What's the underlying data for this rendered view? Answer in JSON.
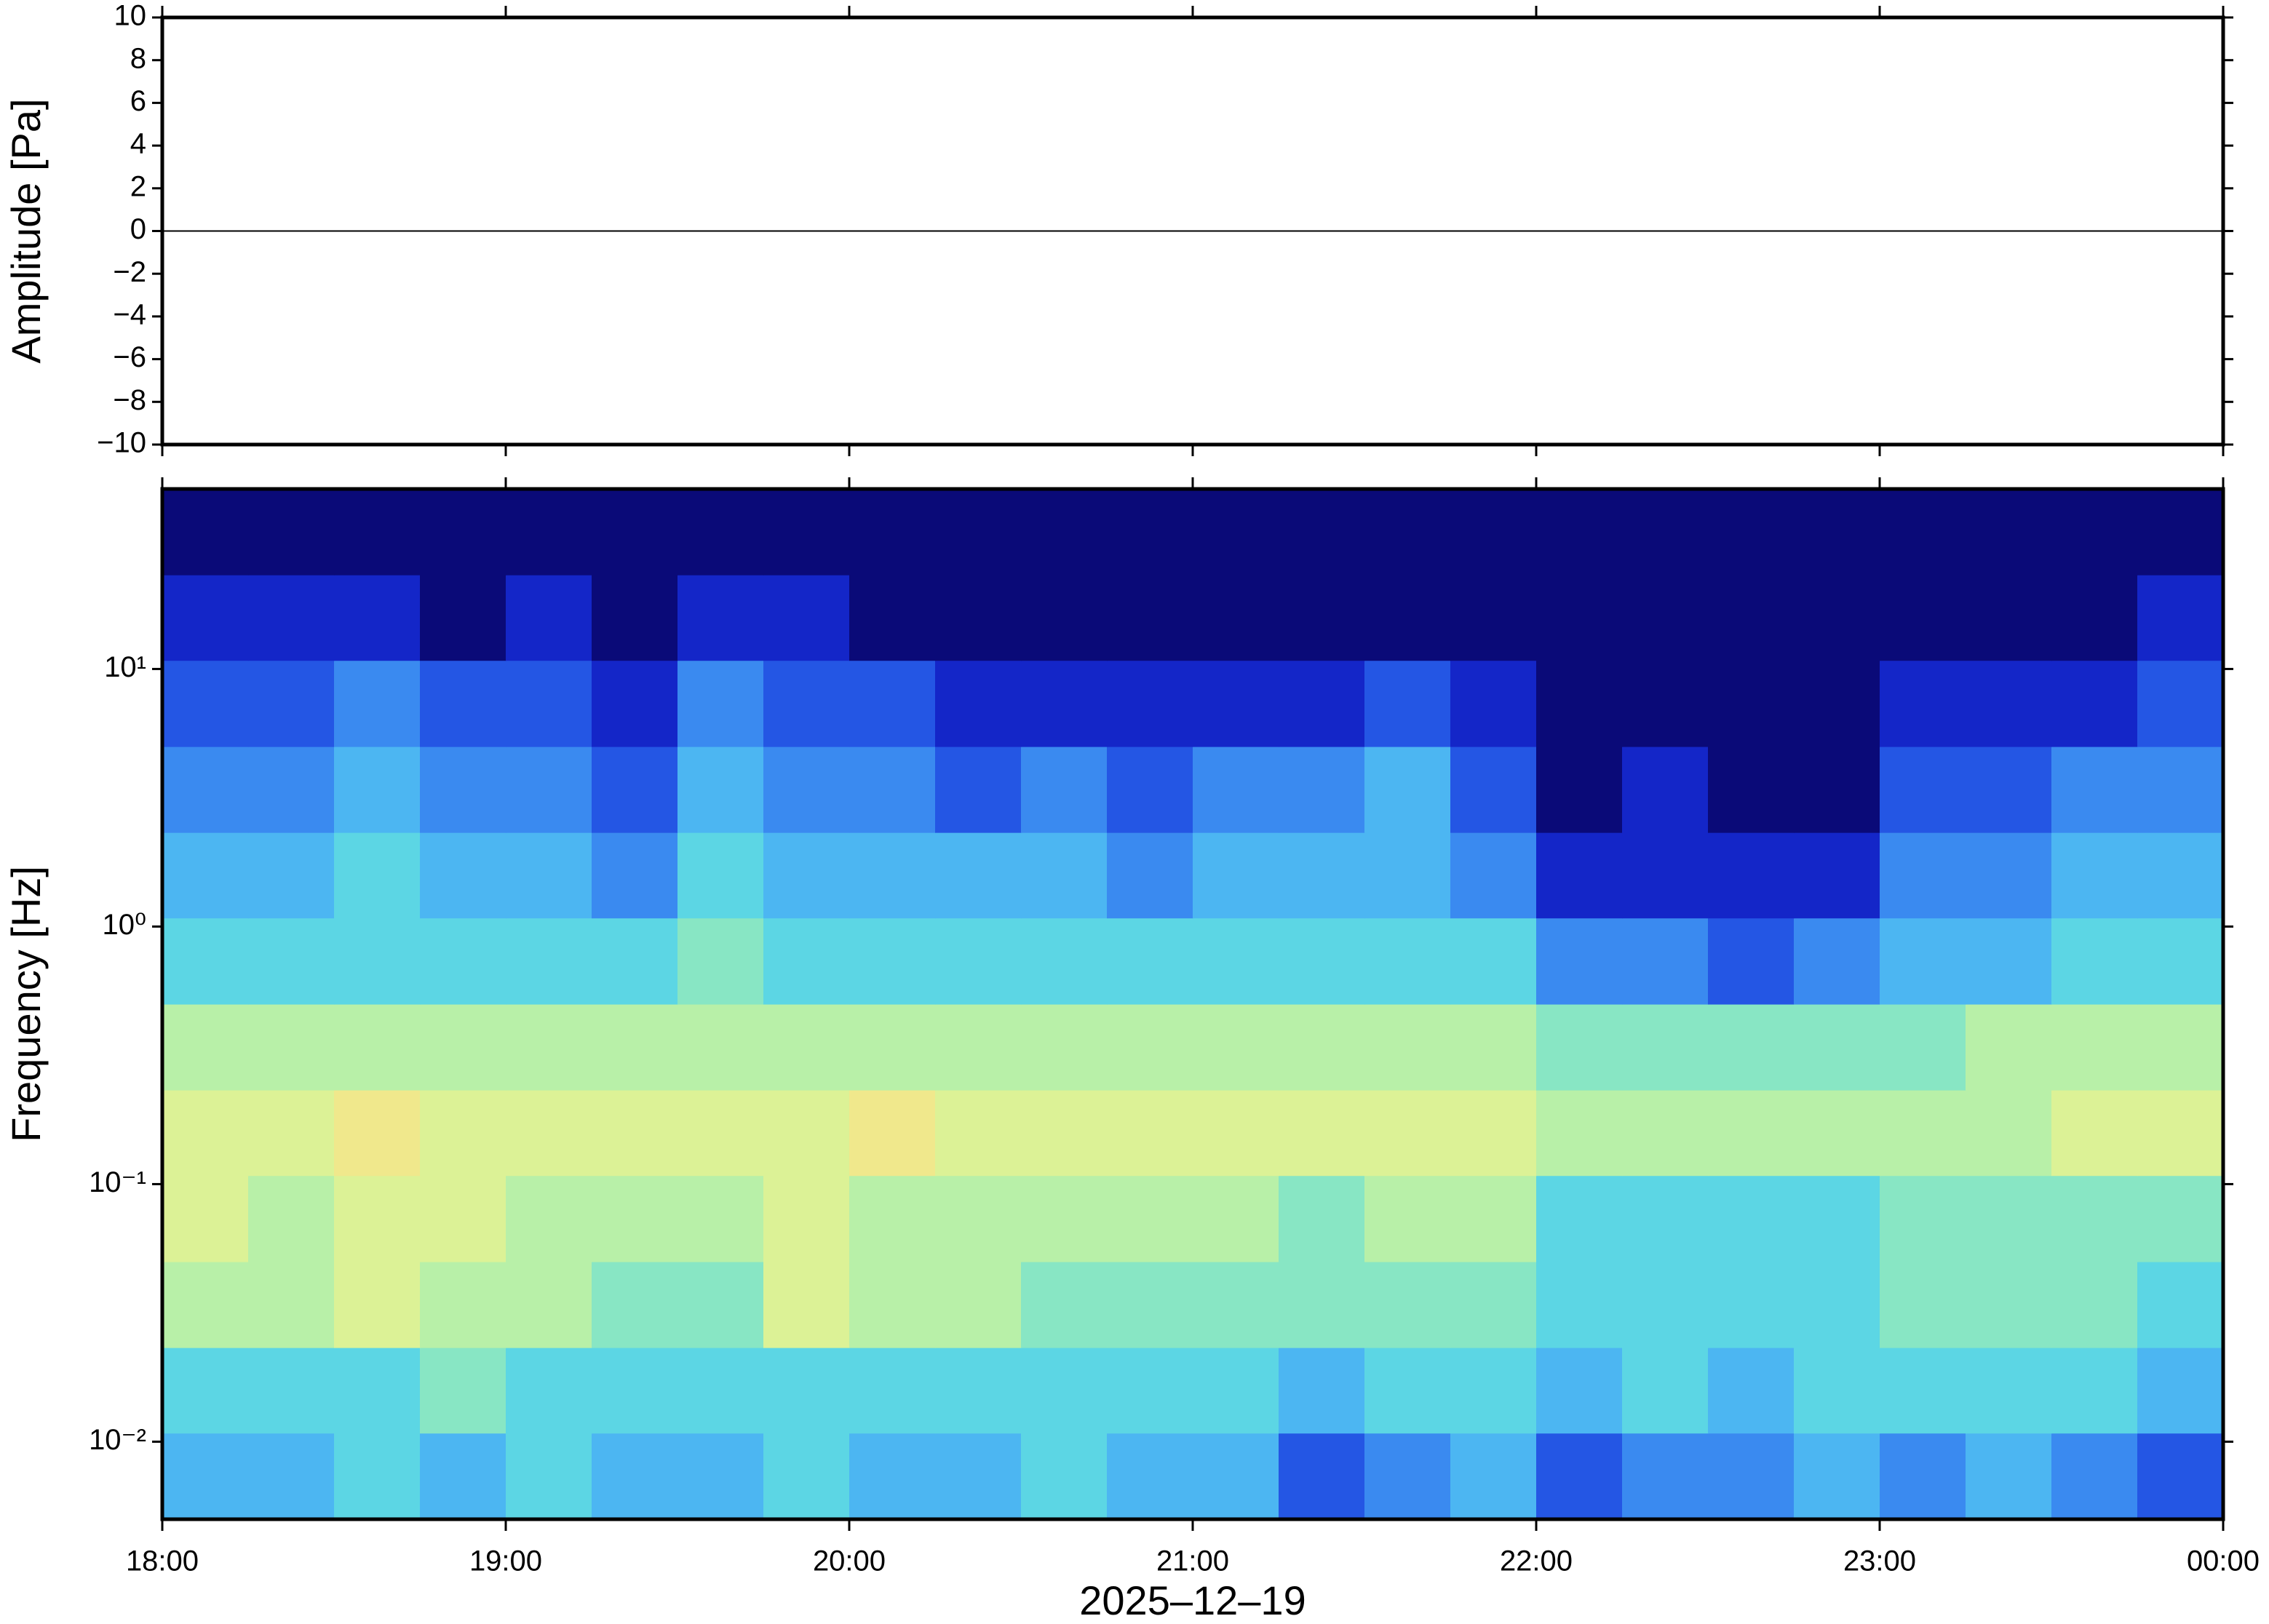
{
  "chart_data": [
    {
      "type": "line",
      "ylabel": "Amplitude [Pa]",
      "xlim": [
        0,
        360
      ],
      "ylim": [
        -10,
        10
      ],
      "yticks": [
        {
          "value": -10,
          "label": "−10"
        },
        {
          "value": -8,
          "label": "−8"
        },
        {
          "value": -6,
          "label": "−6"
        },
        {
          "value": -4,
          "label": "−4"
        },
        {
          "value": -2,
          "label": "−2"
        },
        0,
        2,
        4,
        6,
        8,
        10
      ],
      "series": [
        {
          "color": "#000000",
          "x": [
            0,
            30,
            60,
            90,
            120,
            150,
            180,
            210,
            240,
            270,
            300,
            330,
            360
          ],
          "values": [
            0,
            0,
            0,
            0,
            0,
            0,
            0,
            0,
            0,
            0,
            0,
            0,
            0
          ]
        }
      ]
    },
    {
      "type": "heatmap",
      "ylabel": "Frequency [Hz]",
      "xlabel": "2025–12–19",
      "log_y": true,
      "xlim": [
        0,
        360
      ],
      "xticks": [
        {
          "value": 0,
          "label": "18:00"
        },
        {
          "value": 60,
          "label": "19:00"
        },
        {
          "value": 120,
          "label": "20:00"
        },
        {
          "value": 180,
          "label": "21:00"
        },
        {
          "value": 240,
          "label": "22:00"
        },
        {
          "value": 300,
          "label": "23:00"
        },
        {
          "value": 360,
          "label": "00:00"
        }
      ],
      "ylim": [
        0.005,
        50
      ],
      "yticks": [
        {
          "value": 0.01,
          "label": "10⁻²"
        },
        {
          "value": 0.1,
          "label": "10⁻¹"
        },
        {
          "value": 1,
          "label": "10⁰"
        },
        {
          "value": 10,
          "label": "10¹"
        }
      ],
      "colormap": [
        "#0a0a78",
        "#1426c8",
        "#2456e4",
        "#3a8af0",
        "#4cb6f2",
        "#5cd6e4",
        "#88e6c4",
        "#b8f0a8",
        "#dcf296",
        "#f0e88c"
      ],
      "x_edges": [
        0,
        15,
        30,
        45,
        60,
        75,
        90,
        105,
        120,
        135,
        150,
        165,
        180,
        195,
        210,
        225,
        240,
        255,
        270,
        285,
        300,
        315,
        330,
        345,
        360
      ],
      "y_edges": [
        0.005,
        0.0108,
        0.0232,
        0.05,
        0.108,
        0.232,
        0.5,
        1.08,
        2.32,
        5,
        10.8,
        23.2,
        50
      ],
      "z": [
        [
          4,
          4,
          5,
          4,
          5,
          4,
          4,
          5,
          4,
          4,
          5,
          4,
          4,
          2,
          3,
          4,
          2,
          3,
          3,
          4,
          3,
          4,
          3,
          2
        ],
        [
          5,
          5,
          5,
          6,
          5,
          5,
          5,
          5,
          5,
          5,
          5,
          5,
          5,
          4,
          5,
          5,
          4,
          5,
          4,
          5,
          5,
          5,
          5,
          4
        ],
        [
          7,
          7,
          8,
          7,
          7,
          6,
          6,
          8,
          7,
          7,
          6,
          6,
          6,
          6,
          6,
          6,
          5,
          5,
          5,
          5,
          6,
          6,
          6,
          5
        ],
        [
          8,
          7,
          8,
          8,
          7,
          7,
          7,
          8,
          7,
          7,
          7,
          7,
          7,
          6,
          7,
          7,
          5,
          5,
          5,
          5,
          6,
          6,
          6,
          6
        ],
        [
          8,
          8,
          9,
          8,
          8,
          8,
          8,
          8,
          9,
          8,
          8,
          8,
          8,
          8,
          8,
          8,
          7,
          7,
          7,
          7,
          7,
          7,
          8,
          8
        ],
        [
          7,
          7,
          7,
          7,
          7,
          7,
          7,
          7,
          7,
          7,
          7,
          7,
          7,
          7,
          7,
          7,
          6,
          6,
          6,
          6,
          6,
          7,
          7,
          7
        ],
        [
          5,
          5,
          5,
          5,
          5,
          5,
          6,
          5,
          5,
          5,
          5,
          5,
          5,
          5,
          5,
          5,
          3,
          3,
          2,
          3,
          4,
          4,
          5,
          5
        ],
        [
          4,
          4,
          5,
          4,
          4,
          3,
          5,
          4,
          4,
          4,
          4,
          3,
          4,
          4,
          4,
          3,
          1,
          1,
          1,
          1,
          3,
          3,
          4,
          4
        ],
        [
          3,
          3,
          4,
          3,
          3,
          2,
          4,
          3,
          3,
          2,
          3,
          2,
          3,
          3,
          4,
          2,
          0,
          1,
          0,
          0,
          2,
          2,
          3,
          3
        ],
        [
          2,
          2,
          3,
          2,
          2,
          1,
          3,
          2,
          2,
          1,
          1,
          1,
          1,
          1,
          2,
          1,
          0,
          0,
          0,
          0,
          1,
          1,
          1,
          2
        ],
        [
          1,
          1,
          1,
          0,
          1,
          0,
          1,
          1,
          0,
          0,
          0,
          0,
          0,
          0,
          0,
          0,
          0,
          0,
          0,
          0,
          0,
          0,
          0,
          1
        ],
        [
          0,
          0,
          0,
          0,
          0,
          0,
          0,
          0,
          0,
          0,
          0,
          0,
          0,
          0,
          0,
          0,
          0,
          0,
          0,
          0,
          0,
          0,
          0,
          0
        ]
      ]
    }
  ]
}
